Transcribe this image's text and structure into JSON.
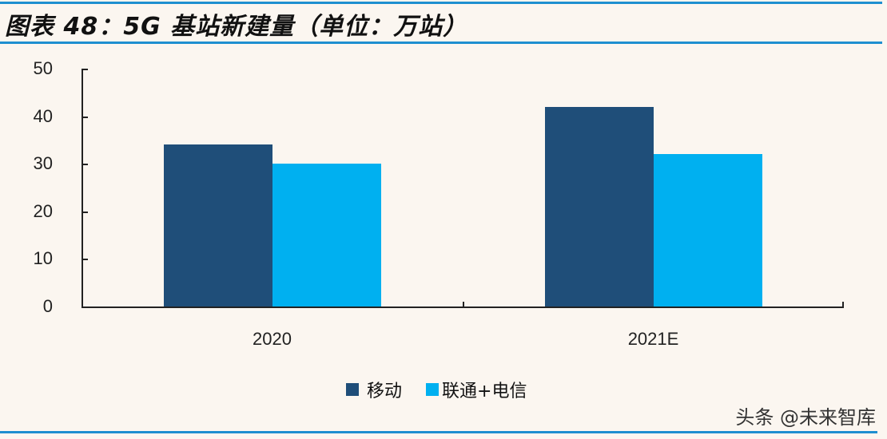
{
  "header": {
    "title": "图表 48：5G 基站新建量（单位：万站）"
  },
  "watermark": "头条 @未来智库",
  "colors": {
    "series1": "#1f4e79",
    "series2": "#00b0f0",
    "rule": "#1e8fd0",
    "background": "#fbf6f0"
  },
  "chart_data": {
    "type": "bar",
    "title": "图表 48：5G 基站新建量（单位：万站）",
    "categories": [
      "2020",
      "2021E"
    ],
    "series": [
      {
        "name": "移动",
        "values": [
          34,
          42
        ],
        "color": "#1f4e79"
      },
      {
        "name": "联通+电信",
        "values": [
          30,
          32
        ],
        "color": "#00b0f0"
      }
    ],
    "xlabel": "",
    "ylabel": "",
    "ylim": [
      0,
      50
    ],
    "yticks": [
      "0",
      "10",
      "20",
      "30",
      "40",
      "50"
    ],
    "grid": false,
    "legend_position": "bottom"
  }
}
